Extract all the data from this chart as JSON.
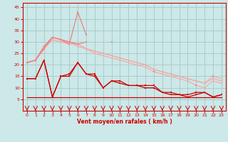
{
  "x": [
    0,
    1,
    2,
    3,
    4,
    5,
    6,
    7,
    8,
    9,
    10,
    11,
    12,
    13,
    14,
    15,
    16,
    17,
    18,
    19,
    20,
    21,
    22,
    23
  ],
  "line_pink1": [
    21,
    22,
    27,
    32,
    31,
    29,
    43,
    33,
    null,
    null,
    30,
    null,
    null,
    null,
    null,
    null,
    null,
    null,
    null,
    null,
    null,
    null,
    null,
    null
  ],
  "line_pink2": [
    21,
    22,
    28,
    32,
    31,
    30,
    29,
    30,
    null,
    null,
    30,
    null,
    null,
    null,
    null,
    17,
    null,
    null,
    null,
    null,
    11,
    null,
    15,
    null
  ],
  "line_lightpink1": [
    21,
    22,
    27,
    31,
    30,
    29,
    29,
    27,
    26,
    25,
    24,
    23,
    22,
    21,
    20,
    18,
    17,
    16,
    15,
    14,
    13,
    12,
    14,
    13
  ],
  "line_lightpink2": [
    21,
    22,
    27,
    31,
    30,
    30,
    28,
    27,
    25,
    24,
    23,
    22,
    21,
    20,
    19,
    17,
    16,
    15,
    14,
    13,
    11,
    10,
    13,
    12
  ],
  "line_lightpink3": [
    21,
    22,
    28,
    32,
    31,
    30,
    29,
    27,
    26,
    25,
    24,
    23,
    22,
    21,
    20,
    18,
    17,
    16,
    15,
    14,
    13,
    12,
    15,
    14
  ],
  "line_red1": [
    14,
    14,
    22,
    6,
    15,
    16,
    21,
    16,
    16,
    10,
    13,
    13,
    11,
    11,
    11,
    11,
    8,
    8,
    7,
    7,
    8,
    8,
    6,
    7
  ],
  "line_red2": [
    14,
    14,
    22,
    6,
    15,
    15,
    21,
    16,
    15,
    10,
    13,
    12,
    11,
    11,
    10,
    10,
    8,
    7,
    7,
    6,
    7,
    8,
    6,
    7
  ],
  "line_red_flat": [
    6,
    6,
    6,
    6,
    6,
    6,
    6,
    6,
    6,
    6,
    6,
    6,
    6,
    6,
    6,
    6,
    6,
    6,
    6,
    6,
    6,
    6,
    6,
    6
  ],
  "bg_color": "#cce8e8",
  "grid_color": "#aacccc",
  "color_pink_mid": "#f08080",
  "color_pink_light": "#f4a8a8",
  "color_red": "#cc0000",
  "xlabel": "Vent moyen/en rafales ( km/h )",
  "ylim": [
    0,
    47
  ],
  "xlim": [
    -0.5,
    23.5
  ],
  "yticks": [
    5,
    10,
    15,
    20,
    25,
    30,
    35,
    40,
    45
  ],
  "xticks": [
    0,
    1,
    2,
    3,
    4,
    5,
    6,
    7,
    8,
    9,
    10,
    11,
    12,
    13,
    14,
    15,
    16,
    17,
    18,
    19,
    20,
    21,
    22,
    23
  ]
}
